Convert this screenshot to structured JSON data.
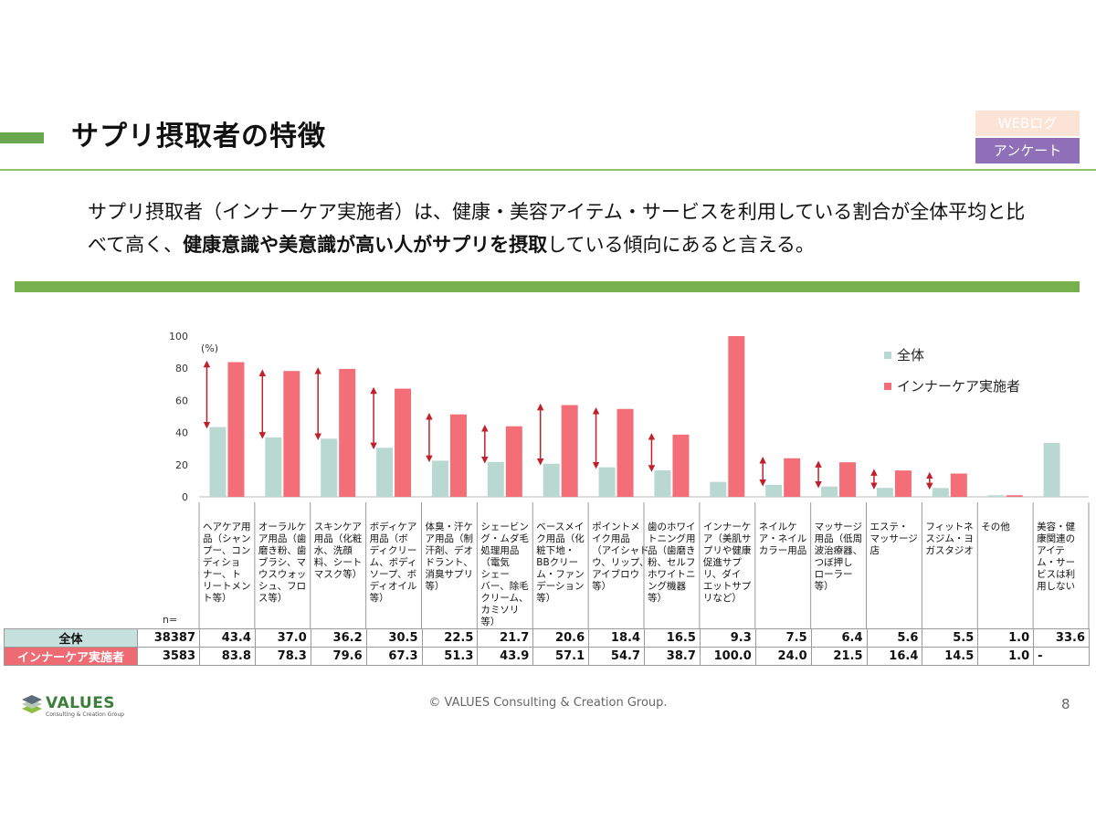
{
  "header": {
    "title": "サプリ摂取者の特徴",
    "tags": [
      "WEBログ",
      "アンケート"
    ]
  },
  "lead": {
    "line1": "サプリ摂取者（インナーケア実施者）は、健康・美容アイテム・サービスを利用している割合が全体平均と比",
    "line2_pre": "べて高く、",
    "line2_bold": "健康意識や美意識が高い人がサプリを摂取",
    "line2_post": "している傾向にあると言える。"
  },
  "chart_data": {
    "type": "bar",
    "unit_label": "(%)",
    "ylim": [
      0,
      100
    ],
    "yticks": [
      0,
      20,
      40,
      60,
      80,
      100
    ],
    "legend_position": "top-right",
    "categories": [
      [
        "ヘアケア用",
        "品（シャン",
        "プー、コン",
        "ディショ",
        "ナー、ト",
        "リートメン",
        "ト等）"
      ],
      [
        "オーラルケ",
        "ア用品（歯",
        "磨き粉、歯",
        "ブラシ、マ",
        "ウスウォッ",
        "シュ、フロ",
        "ス等）"
      ],
      [
        "スキンケア",
        "用品（化粧",
        "水、洗顔",
        "料、シート",
        "マスク等）"
      ],
      [
        "ボディケア",
        "用品（ボ",
        "ディクリー",
        "ム、ボディ",
        "ソープ、ボ",
        "ディオイル",
        "等）"
      ],
      [
        "体臭・汗ケ",
        "ア用品（制",
        "汗剤、デオ",
        "ドラント、",
        "消臭サプリ",
        "等）"
      ],
      [
        "シェービン",
        "グ・ムダ毛",
        "処理用品",
        "（電気",
        "シェー",
        "バー、除毛",
        "クリーム、",
        "カミソリ",
        "等）"
      ],
      [
        "ベースメイ",
        "ク用品（化",
        "粧下地・",
        "BBクリー",
        "ム・ファン",
        "デーション",
        "等）"
      ],
      [
        "ポイントメ",
        "イク用品",
        "（アイシャド",
        "ウ、リップ、",
        "アイブロウ",
        "等）"
      ],
      [
        "歯のホワイ",
        "トニング用",
        "品（歯磨き",
        "粉、セルフ",
        "ホワイトニ",
        "ング機器",
        "等）"
      ],
      [
        "インナーケ",
        "ア（美肌サ",
        "プリや健康",
        "促進サプ",
        "リ、ダイ",
        "エットサプ",
        "リなど）"
      ],
      [
        "ネイルケ",
        "ア・ネイル",
        "カラー用品"
      ],
      [
        "マッサージ",
        "用品（低周",
        "波治療器、",
        "つぼ押し",
        "ローラー",
        "等）"
      ],
      [
        "エステ・",
        "マッサージ",
        "店"
      ],
      [
        "フィットネ",
        "スジム・ヨ",
        "ガスタジオ"
      ],
      [
        "その他"
      ],
      [
        "美容・健",
        "康関連の",
        "アイテ",
        "ム・サー",
        "ビスは利",
        "用しない"
      ]
    ],
    "series": [
      {
        "name": "全体",
        "color": "#b9d8d2",
        "n": "38387",
        "values": [
          43.4,
          37.0,
          36.2,
          30.5,
          22.5,
          21.7,
          20.6,
          18.4,
          16.5,
          9.3,
          7.5,
          6.4,
          5.6,
          5.5,
          1.0,
          33.6
        ],
        "labels": [
          "43.4",
          "37.0",
          "36.2",
          "30.5",
          "22.5",
          "21.7",
          "20.6",
          "18.4",
          "16.5",
          "9.3",
          "7.5",
          "6.4",
          "5.6",
          "5.5",
          "1.0",
          "33.6"
        ]
      },
      {
        "name": "インナーケア実施者",
        "color": "#f46e77",
        "n": "3583",
        "values": [
          83.8,
          78.3,
          79.6,
          67.3,
          51.3,
          43.9,
          57.1,
          54.7,
          38.7,
          100.0,
          24.0,
          21.5,
          16.4,
          14.5,
          1.0,
          null
        ],
        "labels": [
          "83.8",
          "78.3",
          "79.6",
          "67.3",
          "51.3",
          "43.9",
          "57.1",
          "54.7",
          "38.7",
          "100.0",
          "24.0",
          "21.5",
          "16.4",
          "14.5",
          "1.0",
          "-"
        ]
      }
    ],
    "arrow_color": "#c0202a",
    "n_label": "n="
  },
  "footer": {
    "logo_word": "VALUES",
    "logo_sub": "Consulting & Creation Group",
    "copyright": "© VALUES Consulting & Creation Group.",
    "page_number": "8"
  }
}
